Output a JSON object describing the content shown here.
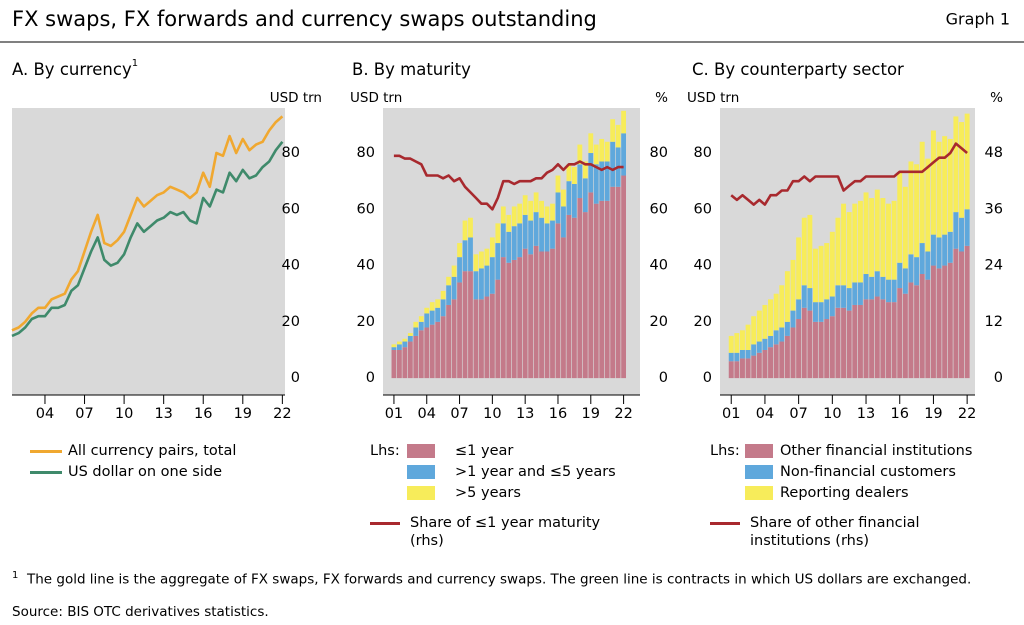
{
  "header": {
    "title": "FX swaps, FX forwards and currency swaps outstanding",
    "graph_label": "Graph 1"
  },
  "chart_data": [
    {
      "type": "line",
      "title": "A. By currency",
      "title_note": "1",
      "ylabel": "USD trn",
      "yaxis_side": "right",
      "x": [
        2001.5,
        2002,
        2002.5,
        2003,
        2003.5,
        2004,
        2004.5,
        2005,
        2005.5,
        2006,
        2006.5,
        2007,
        2007.5,
        2008,
        2008.5,
        2009,
        2009.5,
        2010,
        2010.5,
        2011,
        2011.5,
        2012,
        2012.5,
        2013,
        2013.5,
        2014,
        2014.5,
        2015,
        2015.5,
        2016,
        2016.5,
        2017,
        2017.5,
        2018,
        2018.5,
        2019,
        2019.5,
        2020,
        2020.5,
        2021,
        2021.5,
        2022
      ],
      "xlim": [
        2001.5,
        2022.2
      ],
      "xticks": [
        {
          "value": 2004,
          "label": "04"
        },
        {
          "value": 2007,
          "label": "07"
        },
        {
          "value": 2010,
          "label": "10"
        },
        {
          "value": 2013,
          "label": "13"
        },
        {
          "value": 2016,
          "label": "16"
        },
        {
          "value": 2019,
          "label": "19"
        },
        {
          "value": 2022,
          "label": "22"
        }
      ],
      "ylim": [
        -6,
        96
      ],
      "yticks": [
        0,
        20,
        40,
        60,
        80
      ],
      "series": [
        {
          "name": "All currency pairs, total",
          "color": "#f0a830",
          "values": [
            17,
            18,
            20,
            23,
            25,
            25,
            28,
            29,
            30,
            35,
            38,
            45,
            52,
            58,
            48,
            47,
            49,
            52,
            58,
            64,
            61,
            63,
            65,
            66,
            68,
            67,
            66,
            64,
            66,
            73,
            68,
            80,
            79,
            86,
            80,
            85,
            81,
            83,
            84,
            88,
            91,
            93
          ]
        },
        {
          "name": "US dollar on one side",
          "color": "#3f8a6b",
          "values": [
            15,
            16,
            18,
            21,
            22,
            22,
            25,
            25,
            26,
            31,
            33,
            39,
            45,
            50,
            42,
            40,
            41,
            44,
            50,
            55,
            52,
            54,
            56,
            57,
            59,
            58,
            59,
            56,
            55,
            64,
            61,
            67,
            66,
            73,
            70,
            74,
            71,
            72,
            75,
            77,
            81,
            84
          ]
        }
      ]
    },
    {
      "type": "bar",
      "stacked": true,
      "title": "B. By maturity",
      "ylabel": "USD trn",
      "y2label": "%",
      "legend_prefix": "Lhs:",
      "x": [
        2001,
        2001.5,
        2002,
        2002.5,
        2003,
        2003.5,
        2004,
        2004.5,
        2005,
        2005.5,
        2006,
        2006.5,
        2007,
        2007.5,
        2008,
        2008.5,
        2009,
        2009.5,
        2010,
        2010.5,
        2011,
        2011.5,
        2012,
        2012.5,
        2013,
        2013.5,
        2014,
        2014.5,
        2015,
        2015.5,
        2016,
        2016.5,
        2017,
        2017.5,
        2018,
        2018.5,
        2019,
        2019.5,
        2020,
        2020.5,
        2021,
        2021.5,
        2022
      ],
      "xlim": [
        2000,
        2023.5
      ],
      "xticks": [
        {
          "value": 2001,
          "label": "01"
        },
        {
          "value": 2004,
          "label": "04"
        },
        {
          "value": 2007,
          "label": "07"
        },
        {
          "value": 2010,
          "label": "10"
        },
        {
          "value": 2013,
          "label": "13"
        },
        {
          "value": 2016,
          "label": "16"
        },
        {
          "value": 2019,
          "label": "19"
        },
        {
          "value": 2022,
          "label": "22"
        }
      ],
      "ylim": [
        -6,
        96
      ],
      "yticks": [
        0,
        20,
        40,
        60,
        80
      ],
      "y2lim": [
        -6,
        96
      ],
      "y2ticks": [
        0,
        20,
        40,
        60,
        80
      ],
      "series": [
        {
          "name": "≤1 year",
          "color": "#c47a8a",
          "values": [
            10,
            10,
            11,
            13,
            15,
            17,
            18,
            19,
            20,
            22,
            26,
            28,
            34,
            38,
            38,
            28,
            28,
            29,
            30,
            35,
            43,
            41,
            42,
            43,
            46,
            44,
            47,
            45,
            45,
            46,
            55,
            50,
            58,
            57,
            64,
            59,
            66,
            62,
            63,
            63,
            68,
            68,
            72
          ]
        },
        {
          "name": ">1 year and ≤5 years",
          "color": "#5fa8dc",
          "values": [
            1,
            2,
            2,
            2,
            3,
            3,
            5,
            5,
            5,
            6,
            7,
            8,
            9,
            11,
            12,
            10,
            11,
            11,
            13,
            13,
            12,
            11,
            12,
            12,
            12,
            12,
            12,
            12,
            10,
            10,
            11,
            11,
            12,
            12,
            12,
            12,
            14,
            14,
            14,
            14,
            16,
            14,
            15
          ]
        },
        {
          "name": ">5 years",
          "color": "#f7ec5a",
          "values": [
            1,
            1,
            1,
            1,
            2,
            2,
            2,
            3,
            3,
            3,
            3,
            4,
            5,
            7,
            7,
            6,
            6,
            6,
            7,
            7,
            6,
            6,
            7,
            7,
            7,
            7,
            7,
            6,
            6,
            6,
            6,
            6,
            6,
            6,
            7,
            6,
            7,
            7,
            8,
            7,
            8,
            8,
            8
          ]
        },
        {
          "name": "Share of ≤1 year maturity (rhs)",
          "color": "#a8292e",
          "mark": "line",
          "axis": "y2",
          "values": [
            79,
            79,
            78,
            78,
            77,
            76,
            72,
            72,
            72,
            71,
            72,
            70,
            71,
            68,
            66,
            64,
            62,
            62,
            60,
            64,
            70,
            70,
            69,
            70,
            70,
            70,
            71,
            71,
            73,
            74,
            76,
            74,
            76,
            76,
            77,
            76,
            76,
            75,
            74,
            75,
            74,
            75,
            75
          ]
        }
      ]
    },
    {
      "type": "bar",
      "stacked": true,
      "title": "C. By counterparty sector",
      "ylabel": "USD trn",
      "y2label": "%",
      "legend_prefix": "Lhs:",
      "x": [
        2001,
        2001.5,
        2002,
        2002.5,
        2003,
        2003.5,
        2004,
        2004.5,
        2005,
        2005.5,
        2006,
        2006.5,
        2007,
        2007.5,
        2008,
        2008.5,
        2009,
        2009.5,
        2010,
        2010.5,
        2011,
        2011.5,
        2012,
        2012.5,
        2013,
        2013.5,
        2014,
        2014.5,
        2015,
        2015.5,
        2016,
        2016.5,
        2017,
        2017.5,
        2018,
        2018.5,
        2019,
        2019.5,
        2020,
        2020.5,
        2021,
        2021.5,
        2022
      ],
      "xlim": [
        2000,
        2022.7
      ],
      "xticks": [
        {
          "value": 2001,
          "label": "01"
        },
        {
          "value": 2004,
          "label": "04"
        },
        {
          "value": 2007,
          "label": "07"
        },
        {
          "value": 2010,
          "label": "10"
        },
        {
          "value": 2013,
          "label": "13"
        },
        {
          "value": 2016,
          "label": "16"
        },
        {
          "value": 2019,
          "label": "19"
        },
        {
          "value": 2022,
          "label": "22"
        }
      ],
      "ylim": [
        -6,
        96
      ],
      "yticks": [
        0,
        20,
        40,
        60,
        80
      ],
      "y2lim": [
        -3.6,
        57.6
      ],
      "y2ticks": [
        0,
        12,
        24,
        36,
        48
      ],
      "series": [
        {
          "name": "Other financial institutions",
          "color": "#c47a8a",
          "values": [
            6,
            6,
            7,
            7,
            8,
            9,
            10,
            11,
            12,
            13,
            15,
            18,
            21,
            25,
            24,
            20,
            20,
            21,
            22,
            25,
            25,
            24,
            26,
            26,
            28,
            28,
            29,
            28,
            27,
            27,
            32,
            30,
            34,
            33,
            37,
            35,
            40,
            39,
            40,
            41,
            46,
            45,
            47
          ]
        },
        {
          "name": "Non-financial customers",
          "color": "#5fa8dc",
          "values": [
            3,
            3,
            3,
            3,
            4,
            4,
            4,
            4,
            5,
            5,
            5,
            6,
            7,
            8,
            8,
            7,
            7,
            7,
            7,
            8,
            8,
            8,
            8,
            8,
            9,
            8,
            9,
            8,
            8,
            8,
            9,
            9,
            10,
            10,
            11,
            10,
            11,
            11,
            11,
            11,
            13,
            12,
            13
          ]
        },
        {
          "name": "Reporting dealers",
          "color": "#f7ec5a",
          "values": [
            6,
            7,
            7,
            9,
            10,
            11,
            12,
            13,
            13,
            15,
            18,
            18,
            22,
            24,
            26,
            19,
            20,
            20,
            23,
            24,
            29,
            27,
            28,
            29,
            29,
            28,
            29,
            28,
            27,
            28,
            32,
            29,
            33,
            33,
            36,
            33,
            37,
            34,
            35,
            33,
            34,
            34,
            34
          ]
        },
        {
          "name": "Share of other financial institutions (rhs)",
          "color": "#a8292e",
          "mark": "line",
          "axis": "y2",
          "values": [
            39,
            38,
            39,
            38,
            37,
            38,
            37,
            39,
            39,
            40,
            40,
            42,
            42,
            43,
            42,
            43,
            43,
            43,
            43,
            43,
            40,
            41,
            42,
            42,
            43,
            43,
            43,
            43,
            43,
            43,
            44,
            44,
            44,
            44,
            44,
            45,
            46,
            47,
            47,
            48,
            50,
            49,
            48
          ]
        }
      ]
    }
  ],
  "footnote": {
    "mark": "1",
    "text": "The gold line is the aggregate of FX swaps, FX forwards and currency swaps. The green line is contracts in which US dollars are exchanged."
  },
  "source": "Source: BIS OTC derivatives statistics."
}
